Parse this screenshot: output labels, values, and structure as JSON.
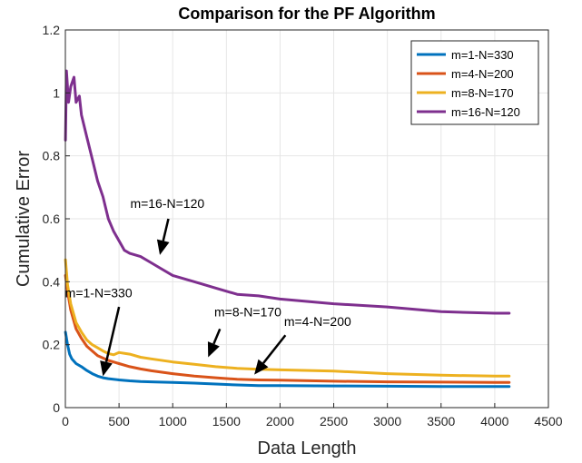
{
  "chart_data": {
    "type": "line",
    "title": "Comparison for the PF Algorithm",
    "xlabel": "Data Length",
    "ylabel": "Cumulative Error",
    "xlim": [
      0,
      4500
    ],
    "ylim": [
      0,
      1.2
    ],
    "xticks": [
      0,
      500,
      1000,
      1500,
      2000,
      2500,
      3000,
      3500,
      4000,
      4500
    ],
    "yticks": [
      0,
      0.2,
      0.4,
      0.6,
      0.8,
      1,
      1.2
    ],
    "xtick_labels": [
      "0",
      "500",
      "1000",
      "1500",
      "2000",
      "2500",
      "3000",
      "3500",
      "4000",
      "4500"
    ],
    "ytick_labels": [
      "0",
      "0.2",
      "0.4",
      "0.6",
      "0.8",
      "1",
      "1.2"
    ],
    "grid": true,
    "legend_position": "top-right",
    "series": [
      {
        "name": "m=1-N=330",
        "color": "#0072BD",
        "x": [
          1,
          20,
          40,
          60,
          100,
          150,
          200,
          250,
          300,
          350,
          400,
          500,
          600,
          700,
          800,
          1000,
          1200,
          1400,
          1600,
          1800,
          2000,
          2500,
          3000,
          3500,
          4000,
          4135
        ],
        "y": [
          0.24,
          0.2,
          0.17,
          0.155,
          0.14,
          0.13,
          0.118,
          0.108,
          0.1,
          0.095,
          0.092,
          0.088,
          0.085,
          0.083,
          0.082,
          0.08,
          0.078,
          0.075,
          0.072,
          0.07,
          0.07,
          0.069,
          0.068,
          0.067,
          0.067,
          0.067
        ]
      },
      {
        "name": "m=4-N=200",
        "color": "#D95319",
        "x": [
          1,
          20,
          50,
          100,
          150,
          200,
          250,
          300,
          400,
          500,
          600,
          700,
          800,
          1000,
          1200,
          1400,
          1600,
          1800,
          2000,
          2500,
          3000,
          3500,
          4000,
          4135
        ],
        "y": [
          0.42,
          0.37,
          0.31,
          0.25,
          0.22,
          0.195,
          0.18,
          0.165,
          0.15,
          0.14,
          0.13,
          0.123,
          0.117,
          0.108,
          0.1,
          0.095,
          0.09,
          0.088,
          0.087,
          0.084,
          0.082,
          0.081,
          0.08,
          0.08
        ]
      },
      {
        "name": "m=8-N=170",
        "color": "#EDB120",
        "x": [
          1,
          20,
          50,
          100,
          150,
          200,
          250,
          300,
          350,
          400,
          450,
          500,
          600,
          700,
          800,
          1000,
          1200,
          1400,
          1600,
          1800,
          2000,
          2500,
          3000,
          3500,
          4000,
          4135
        ],
        "y": [
          0.47,
          0.39,
          0.33,
          0.27,
          0.24,
          0.215,
          0.2,
          0.19,
          0.18,
          0.172,
          0.168,
          0.175,
          0.17,
          0.16,
          0.155,
          0.145,
          0.138,
          0.13,
          0.125,
          0.122,
          0.12,
          0.116,
          0.108,
          0.103,
          0.1,
          0.1
        ]
      },
      {
        "name": "m=16-N=120",
        "color": "#7E2F8E",
        "x": [
          1,
          10,
          30,
          50,
          80,
          100,
          130,
          150,
          200,
          250,
          300,
          350,
          400,
          450,
          500,
          550,
          600,
          700,
          800,
          900,
          1000,
          1200,
          1400,
          1600,
          1800,
          2000,
          2500,
          3000,
          3500,
          4000,
          4135
        ],
        "y": [
          0.85,
          1.07,
          0.97,
          1.02,
          1.05,
          0.97,
          0.99,
          0.93,
          0.86,
          0.79,
          0.72,
          0.67,
          0.6,
          0.56,
          0.53,
          0.5,
          0.49,
          0.48,
          0.46,
          0.44,
          0.42,
          0.4,
          0.38,
          0.36,
          0.355,
          0.345,
          0.33,
          0.32,
          0.305,
          0.3,
          0.3
        ]
      }
    ],
    "annotations": [
      {
        "text": "m=16-N=120",
        "text_x": 950,
        "text_y": 0.635,
        "arrow_from": [
          960,
          0.6
        ],
        "arrow_to": [
          880,
          0.485
        ]
      },
      {
        "text": "m=1-N=330",
        "text_x": 310,
        "text_y": 0.35,
        "arrow_from": [
          500,
          0.32
        ],
        "arrow_to": [
          350,
          0.1
        ]
      },
      {
        "text": "m=8-N=170",
        "text_x": 1700,
        "text_y": 0.29,
        "arrow_from": [
          1440,
          0.25
        ],
        "arrow_to": [
          1330,
          0.16
        ]
      },
      {
        "text": "m=4-N=200",
        "text_x": 2350,
        "text_y": 0.26,
        "arrow_from": [
          2050,
          0.23
        ],
        "arrow_to": [
          1760,
          0.105
        ]
      }
    ]
  }
}
